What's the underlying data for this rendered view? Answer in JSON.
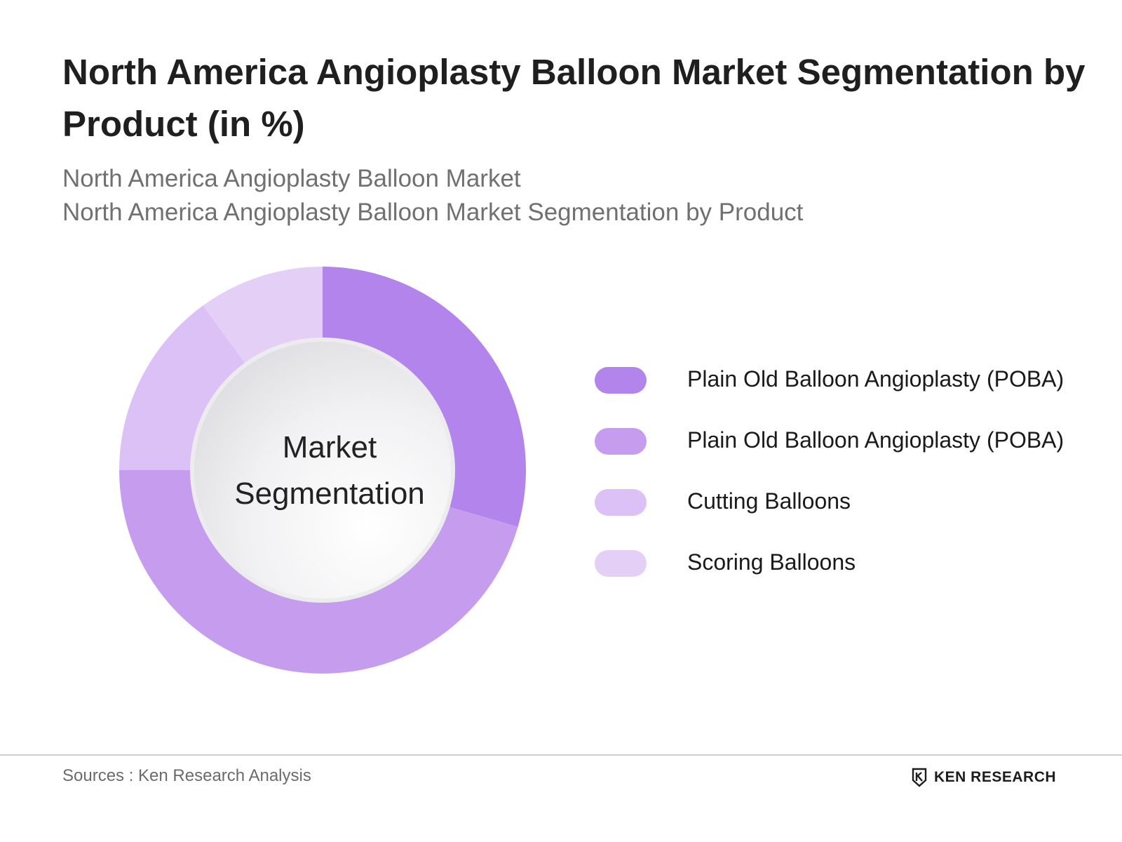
{
  "title": "North America Angioplasty Balloon Market Segmentation by Product (in %)",
  "subtitle_1": "North America Angioplasty Balloon Market",
  "subtitle_2": "North America Angioplasty Balloon Market Segmentation by Product",
  "center_label_line1": "Market",
  "center_label_line2": "Segmentation",
  "chart_data": {
    "type": "pie",
    "variant": "donut",
    "categories": [
      "Plain Old Balloon Angioplasty (POBA)",
      "Plain Old Balloon Angioplasty (POBA)",
      "Cutting Balloons",
      "Scoring Balloons"
    ],
    "values": [
      29.5,
      45.5,
      15,
      10
    ],
    "colors": [
      "#b284ec",
      "#c69cef",
      "#dcc1f6",
      "#e4d0f7"
    ],
    "legend_position": "right"
  },
  "footer": {
    "source": "Sources : Ken Research Analysis",
    "logo_text": "KEN RESEARCH"
  }
}
